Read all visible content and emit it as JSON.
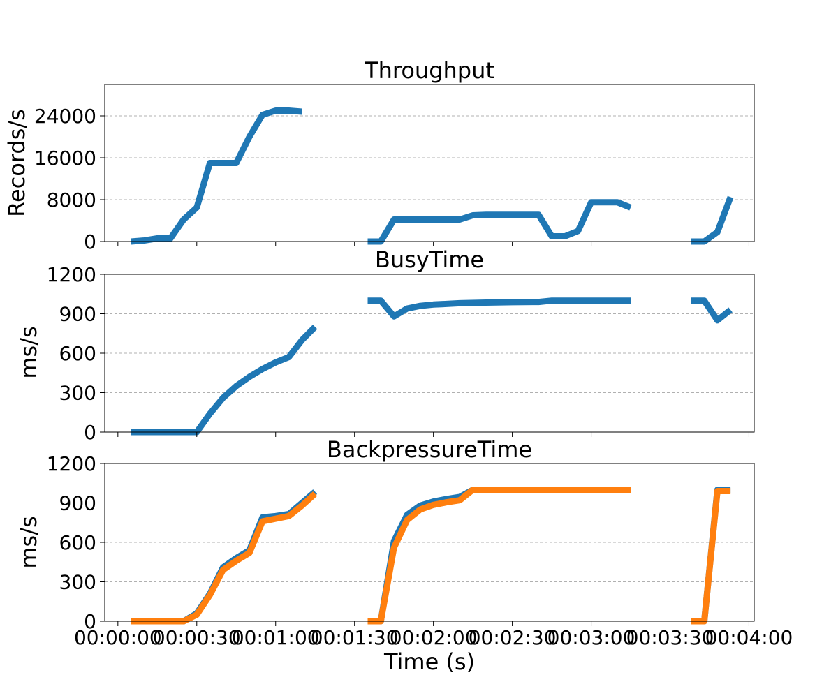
{
  "chart_data": [
    {
      "type": "line",
      "title": "Throughput",
      "ylabel": "Records/s",
      "xlabel": "",
      "ylim": [
        0,
        30000
      ],
      "yticks": [
        0,
        8000,
        16000,
        24000
      ],
      "ytick_labels": [
        "0",
        "8000",
        "16000",
        "24000"
      ],
      "xlim": [
        -5,
        242
      ],
      "xticks": [
        0,
        30,
        60,
        90,
        120,
        150,
        180,
        210,
        240
      ],
      "xtick_labels": [],
      "grid": "y-dashed",
      "colors": [
        "#1f77b4"
      ],
      "series": [
        {
          "segments": [
            [
              [
                5,
                0
              ],
              [
                10,
                200
              ],
              [
                15,
                600
              ],
              [
                20,
                600
              ],
              [
                25,
                4200
              ],
              [
                30,
                6500
              ],
              [
                35,
                15000
              ],
              [
                40,
                15000
              ],
              [
                45,
                15000
              ],
              [
                50,
                20000
              ],
              [
                55,
                24200
              ],
              [
                60,
                25000
              ],
              [
                65,
                25000
              ],
              [
                70,
                24800
              ]
            ],
            [
              [
                95,
                0
              ],
              [
                100,
                0
              ],
              [
                105,
                4200
              ],
              [
                110,
                4200
              ],
              [
                115,
                4200
              ],
              [
                120,
                4200
              ],
              [
                125,
                4200
              ],
              [
                130,
                4200
              ],
              [
                135,
                5000
              ],
              [
                140,
                5100
              ],
              [
                145,
                5100
              ],
              [
                150,
                5100
              ],
              [
                155,
                5100
              ],
              [
                160,
                5100
              ],
              [
                165,
                1000
              ],
              [
                170,
                1000
              ],
              [
                175,
                2000
              ],
              [
                180,
                7500
              ],
              [
                185,
                7500
              ],
              [
                190,
                7500
              ],
              [
                195,
                6500
              ]
            ],
            [
              [
                218,
                0
              ],
              [
                223,
                0
              ],
              [
                228,
                1800
              ],
              [
                233,
                8500
              ]
            ]
          ]
        }
      ]
    },
    {
      "type": "line",
      "title": "BusyTime",
      "ylabel": "ms/s",
      "xlabel": "",
      "ylim": [
        0,
        1200
      ],
      "yticks": [
        0,
        300,
        600,
        900,
        1200
      ],
      "ytick_labels": [
        "0",
        "300",
        "600",
        "900",
        "1200"
      ],
      "xlim": [
        -5,
        242
      ],
      "xticks": [
        0,
        30,
        60,
        90,
        120,
        150,
        180,
        210,
        240
      ],
      "xtick_labels": [],
      "grid": "y-dashed",
      "colors": [
        "#1f77b4"
      ],
      "series": [
        {
          "segments": [
            [
              [
                5,
                0
              ],
              [
                10,
                0
              ],
              [
                15,
                0
              ],
              [
                20,
                0
              ],
              [
                25,
                0
              ],
              [
                30,
                0
              ],
              [
                35,
                140
              ],
              [
                40,
                260
              ],
              [
                45,
                350
              ],
              [
                50,
                420
              ],
              [
                55,
                480
              ],
              [
                60,
                530
              ],
              [
                65,
                570
              ],
              [
                70,
                700
              ],
              [
                75,
                800
              ]
            ],
            [
              [
                95,
                1000
              ],
              [
                100,
                1000
              ],
              [
                105,
                880
              ],
              [
                110,
                940
              ],
              [
                115,
                960
              ],
              [
                120,
                970
              ],
              [
                125,
                975
              ],
              [
                130,
                980
              ],
              [
                140,
                985
              ],
              [
                150,
                988
              ],
              [
                160,
                990
              ],
              [
                165,
                1000
              ],
              [
                170,
                1000
              ],
              [
                180,
                1000
              ],
              [
                190,
                1000
              ],
              [
                195,
                1000
              ]
            ],
            [
              [
                218,
                1000
              ],
              [
                223,
                1000
              ],
              [
                228,
                850
              ],
              [
                233,
                930
              ]
            ]
          ]
        }
      ]
    },
    {
      "type": "line",
      "title": "BackpressureTime",
      "ylabel": "ms/s",
      "xlabel": "Time (s)",
      "ylim": [
        0,
        1200
      ],
      "yticks": [
        0,
        300,
        600,
        900,
        1200
      ],
      "ytick_labels": [
        "0",
        "300",
        "600",
        "900",
        "1200"
      ],
      "xlim": [
        -5,
        242
      ],
      "xticks": [
        0,
        30,
        60,
        90,
        120,
        150,
        180,
        210,
        240
      ],
      "xtick_labels": [
        "00:00:00",
        "00:00:30",
        "00:01:00",
        "00:01:30",
        "00:02:00",
        "00:02:30",
        "00:03:00",
        "00:03:30",
        "00:04:00"
      ],
      "grid": "y-dashed",
      "colors": [
        "#1f77b4",
        "#ff7f0e"
      ],
      "series": [
        {
          "segments": [
            [
              [
                5,
                0
              ],
              [
                10,
                0
              ],
              [
                15,
                0
              ],
              [
                20,
                0
              ],
              [
                25,
                0
              ],
              [
                30,
                60
              ],
              [
                35,
                210
              ],
              [
                40,
                410
              ],
              [
                45,
                480
              ],
              [
                50,
                540
              ],
              [
                55,
                790
              ],
              [
                60,
                800
              ],
              [
                65,
                815
              ],
              [
                70,
                900
              ],
              [
                75,
                985
              ]
            ],
            [
              [
                95,
                0
              ],
              [
                100,
                0
              ],
              [
                105,
                610
              ],
              [
                110,
                810
              ],
              [
                115,
                880
              ],
              [
                120,
                910
              ],
              [
                125,
                930
              ],
              [
                130,
                945
              ],
              [
                135,
                1000
              ],
              [
                140,
                1000
              ],
              [
                150,
                1000
              ],
              [
                160,
                1000
              ],
              [
                170,
                1000
              ],
              [
                180,
                1000
              ],
              [
                190,
                1000
              ],
              [
                195,
                1000
              ]
            ],
            [
              [
                218,
                0
              ],
              [
                223,
                0
              ],
              [
                228,
                1000
              ],
              [
                233,
                1000
              ]
            ]
          ]
        },
        {
          "segments": [
            [
              [
                5,
                0
              ],
              [
                10,
                0
              ],
              [
                15,
                0
              ],
              [
                20,
                0
              ],
              [
                25,
                0
              ],
              [
                30,
                50
              ],
              [
                35,
                200
              ],
              [
                40,
                390
              ],
              [
                45,
                460
              ],
              [
                50,
                520
              ],
              [
                55,
                760
              ],
              [
                60,
                780
              ],
              [
                65,
                800
              ],
              [
                70,
                880
              ],
              [
                75,
                970
              ]
            ],
            [
              [
                95,
                0
              ],
              [
                100,
                0
              ],
              [
                105,
                560
              ],
              [
                110,
                770
              ],
              [
                115,
                850
              ],
              [
                120,
                885
              ],
              [
                125,
                905
              ],
              [
                130,
                920
              ],
              [
                135,
                1000
              ],
              [
                140,
                1000
              ],
              [
                150,
                1000
              ],
              [
                160,
                1000
              ],
              [
                170,
                1000
              ],
              [
                180,
                1000
              ],
              [
                190,
                1000
              ],
              [
                195,
                1000
              ]
            ],
            [
              [
                218,
                0
              ],
              [
                223,
                0
              ],
              [
                228,
                990
              ],
              [
                233,
                990
              ]
            ]
          ]
        }
      ]
    }
  ]
}
